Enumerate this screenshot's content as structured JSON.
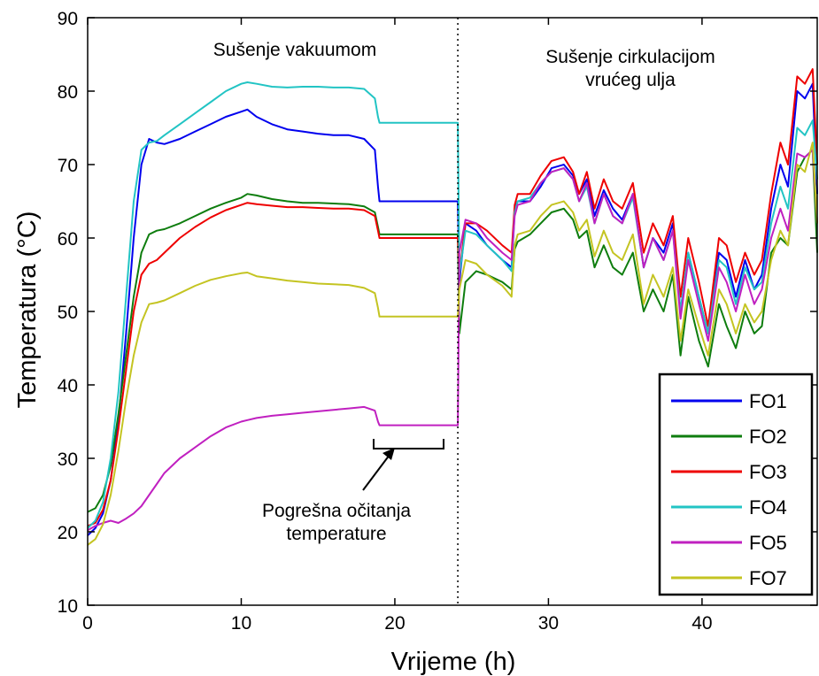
{
  "chart_data": {
    "type": "line",
    "title": "",
    "xlabel": "Vrijeme (h)",
    "ylabel": "Temperatura (°C)",
    "xlim": [
      0,
      47.5
    ],
    "ylim": [
      10,
      90
    ],
    "xticks": [
      0,
      10,
      20,
      30,
      40
    ],
    "yticks": [
      10,
      20,
      30,
      40,
      50,
      60,
      70,
      80,
      90
    ],
    "grid": false,
    "legend_position": "bottom-right",
    "divider_x": 24.1,
    "annotations": {
      "vacuum": "Sušenje vakuumom",
      "oil_line1": "Sušenje cirkulacijom",
      "oil_line2": "vrućeg ulja",
      "error_line1": "Pogrešna očitanja",
      "error_line2": "temperature"
    },
    "series": [
      {
        "name": "FO1",
        "color": "#0000ee",
        "x": [
          0,
          0.5,
          1,
          1.5,
          2,
          2.5,
          3,
          3.5,
          4,
          4.5,
          5,
          6,
          7,
          8,
          9,
          10,
          10.4,
          11,
          12,
          13,
          14,
          15,
          16,
          17,
          18,
          18.7,
          18.9,
          19,
          24.1,
          24.2,
          24.6,
          25.3,
          26,
          27,
          27.6,
          27.8,
          28,
          28.8,
          29.5,
          30.2,
          31,
          31.6,
          32,
          32.5,
          33,
          33.6,
          34.2,
          34.8,
          35.5,
          36.2,
          36.8,
          37.5,
          38.1,
          38.6,
          39.1,
          39.8,
          40.4,
          41.1,
          41.6,
          42.2,
          42.8,
          43.4,
          43.9,
          44.5,
          45.1,
          45.6,
          46.2,
          46.7,
          47.2,
          47.5
        ],
        "y": [
          19.5,
          20.5,
          22.5,
          27,
          35,
          47,
          60,
          70,
          73.5,
          73,
          72.8,
          73.5,
          74.5,
          75.5,
          76.5,
          77.2,
          77.5,
          76.5,
          75.5,
          74.8,
          74.5,
          74.2,
          74,
          74,
          73.5,
          72,
          67,
          65,
          65,
          54,
          62,
          61,
          59,
          57,
          56,
          64,
          65,
          65,
          67,
          69.5,
          70,
          68.5,
          66,
          68,
          63,
          66.5,
          64,
          62.5,
          66,
          56,
          60,
          58,
          62,
          50,
          58,
          52,
          47,
          58,
          57,
          52,
          57,
          53,
          55,
          64,
          70,
          67,
          80,
          79,
          81,
          66
        ]
      },
      {
        "name": "FO2",
        "color": "#0e7d0e",
        "x": [
          0,
          0.5,
          1,
          1.5,
          2,
          2.5,
          3,
          3.5,
          4,
          4.5,
          5,
          6,
          7,
          8,
          9,
          10,
          10.4,
          11,
          12,
          13,
          14,
          15,
          16,
          17,
          18,
          18.7,
          18.9,
          19,
          24.1,
          24.2,
          24.6,
          25.3,
          26,
          27,
          27.6,
          27.8,
          28,
          28.8,
          29.5,
          30.2,
          31,
          31.6,
          32,
          32.5,
          33,
          33.6,
          34.2,
          34.8,
          35.5,
          36.2,
          36.8,
          37.5,
          38.1,
          38.6,
          39.1,
          39.8,
          40.4,
          41.1,
          41.6,
          42.2,
          42.8,
          43.4,
          43.9,
          44.5,
          45.1,
          45.6,
          46.2,
          46.7,
          47.2,
          47.5
        ],
        "y": [
          22.7,
          23.2,
          25,
          29,
          36,
          44,
          52,
          58,
          60.5,
          61,
          61.2,
          62,
          63,
          64,
          64.8,
          65.5,
          66,
          65.8,
          65.3,
          65,
          64.8,
          64.8,
          64.7,
          64.6,
          64.3,
          63.5,
          61.5,
          60.5,
          60.5,
          47,
          54,
          55.5,
          55,
          54,
          53,
          58.5,
          59.5,
          60.5,
          62,
          63.5,
          64,
          62.5,
          60,
          61,
          56,
          59,
          56,
          55,
          58,
          50,
          53,
          50,
          55,
          44,
          52,
          46,
          42.5,
          51,
          48,
          45,
          50,
          47,
          48,
          58,
          60,
          59,
          69,
          71,
          72,
          58
        ]
      },
      {
        "name": "FO3",
        "color": "#ee0000",
        "x": [
          0,
          0.5,
          1,
          1.5,
          2,
          2.5,
          3,
          3.5,
          4,
          4.5,
          5,
          6,
          7,
          8,
          9,
          10,
          10.4,
          11,
          12,
          13,
          14,
          15,
          16,
          17,
          18,
          18.7,
          18.9,
          19,
          24.1,
          24.2,
          24.6,
          25.3,
          26,
          27,
          27.6,
          27.8,
          28,
          28.8,
          29.5,
          30.2,
          31,
          31.6,
          32,
          32.5,
          33,
          33.6,
          34.2,
          34.8,
          35.5,
          36.2,
          36.8,
          37.5,
          38.1,
          38.6,
          39.1,
          39.8,
          40.4,
          41.1,
          41.6,
          42.2,
          42.8,
          43.4,
          43.9,
          44.5,
          45.1,
          45.6,
          46.2,
          46.7,
          47.2,
          47.5
        ],
        "y": [
          20.8,
          21.2,
          23,
          27,
          34,
          42,
          50,
          55,
          56.5,
          57,
          58,
          60,
          61.5,
          62.8,
          63.8,
          64.5,
          64.8,
          64.6,
          64.4,
          64.2,
          64.2,
          64.1,
          64,
          64,
          63.8,
          63,
          61,
          60,
          60,
          55,
          62,
          62,
          61,
          59,
          58,
          64.5,
          66,
          66,
          68.5,
          70.5,
          71,
          69,
          66,
          69,
          64,
          68,
          65,
          64,
          67.5,
          58,
          62,
          59,
          63,
          52,
          60,
          54,
          48,
          60,
          59,
          54,
          58,
          55,
          57,
          66,
          73,
          70,
          82,
          81,
          83,
          70
        ]
      },
      {
        "name": "FO4",
        "color": "#22c4c4",
        "x": [
          0,
          0.5,
          1,
          1.5,
          2,
          2.5,
          3,
          3.5,
          4,
          4.5,
          5,
          6,
          7,
          8,
          9,
          10,
          10.4,
          11,
          12,
          13,
          14,
          15,
          16,
          17,
          18,
          18.7,
          18.9,
          19,
          24.1,
          24.2,
          24.6,
          25.3,
          26,
          27,
          27.6,
          27.8,
          28,
          28.8,
          29.5,
          30.2,
          31,
          31.6,
          32,
          32.5,
          33,
          33.6,
          34.2,
          34.8,
          35.5,
          36.2,
          36.8,
          37.5,
          38.1,
          38.6,
          39.1,
          39.8,
          40.4,
          41.1,
          41.6,
          42.2,
          42.8,
          43.4,
          43.9,
          44.5,
          45.1,
          45.6,
          46.2,
          46.7,
          47.2,
          47.5
        ],
        "y": [
          20.5,
          21.5,
          24,
          30,
          39,
          52,
          65,
          72,
          73,
          73.2,
          74,
          75.5,
          77,
          78.5,
          80,
          81,
          81.2,
          81,
          80.6,
          80.5,
          80.6,
          80.6,
          80.5,
          80.5,
          80.3,
          79,
          76.5,
          75.7,
          75.7,
          55,
          61,
          60.5,
          59,
          57,
          55.5,
          63.5,
          65,
          65.5,
          67.5,
          69,
          69.5,
          68,
          65,
          67,
          62,
          66,
          63,
          62,
          65.5,
          56,
          60,
          57,
          61,
          50,
          58,
          52,
          47,
          57,
          56,
          51,
          56,
          53,
          54,
          62,
          67,
          64,
          75,
          74,
          76,
          68
        ]
      },
      {
        "name": "FO5",
        "color": "#c020c0",
        "x": [
          0,
          0.5,
          1,
          1.5,
          2,
          2.5,
          3,
          3.5,
          4,
          4.5,
          5,
          6,
          7,
          8,
          9,
          10,
          10.4,
          11,
          12,
          13,
          14,
          15,
          16,
          17,
          18,
          18.7,
          18.9,
          19,
          24.1,
          24.2,
          24.6,
          25.3,
          26,
          27,
          27.6,
          27.8,
          28,
          28.8,
          29.5,
          30.2,
          31,
          31.6,
          32,
          32.5,
          33,
          33.6,
          34.2,
          34.8,
          35.5,
          36.2,
          36.8,
          37.5,
          38.1,
          38.6,
          39.1,
          39.8,
          40.4,
          41.1,
          41.6,
          42.2,
          42.8,
          43.4,
          43.9,
          44.5,
          45.1,
          45.6,
          46.2,
          46.7,
          47.2,
          47.5
        ],
        "y": [
          20.2,
          20.8,
          21.2,
          21.5,
          21.2,
          21.8,
          22.5,
          23.5,
          25,
          26.5,
          28,
          30,
          31.5,
          33,
          34.2,
          35,
          35.2,
          35.5,
          35.8,
          36,
          36.2,
          36.4,
          36.6,
          36.8,
          37,
          36.5,
          35,
          34.5,
          34.5,
          58,
          62.5,
          62,
          60,
          58,
          57,
          63,
          64.5,
          65,
          67.5,
          69,
          69.5,
          68,
          65,
          67.5,
          62,
          66,
          63,
          62,
          66,
          56,
          60,
          57,
          61,
          49,
          57,
          51,
          46,
          56,
          54,
          50,
          55,
          51,
          53,
          60,
          64,
          61,
          71.5,
          71,
          72,
          62
        ]
      },
      {
        "name": "FO7",
        "color": "#c4c422",
        "x": [
          0,
          0.5,
          1,
          1.5,
          2,
          2.5,
          3,
          3.5,
          4,
          4.5,
          5,
          6,
          7,
          8,
          9,
          10,
          10.4,
          11,
          12,
          13,
          14,
          15,
          16,
          17,
          18,
          18.7,
          18.9,
          19,
          24.1,
          24.2,
          24.6,
          25.3,
          26,
          27,
          27.6,
          27.8,
          28,
          28.8,
          29.5,
          30.2,
          31,
          31.6,
          32,
          32.5,
          33,
          33.6,
          34.2,
          34.8,
          35.5,
          36.2,
          36.8,
          37.5,
          38.1,
          38.6,
          39.1,
          39.8,
          40.4,
          41.1,
          41.6,
          42.2,
          42.8,
          43.4,
          43.9,
          44.5,
          45.1,
          45.6,
          46.2,
          46.7,
          47.2,
          47.5
        ],
        "y": [
          18.2,
          19,
          21,
          25,
          31,
          38,
          44,
          48.5,
          51,
          51.2,
          51.5,
          52.5,
          53.5,
          54.3,
          54.8,
          55.2,
          55.3,
          54.8,
          54.5,
          54.2,
          54,
          53.8,
          53.7,
          53.6,
          53.2,
          52.5,
          50.5,
          49.3,
          49.3,
          53,
          57,
          56.5,
          55,
          53.5,
          52,
          59,
          60.5,
          61,
          63,
          64.5,
          65,
          63.5,
          61,
          62.5,
          57.5,
          61,
          58,
          57,
          60.5,
          51,
          55,
          52,
          56,
          46,
          53,
          48,
          44,
          53,
          51,
          47,
          51,
          48.5,
          50,
          57,
          61,
          59,
          70,
          69,
          73,
          62
        ]
      }
    ]
  }
}
